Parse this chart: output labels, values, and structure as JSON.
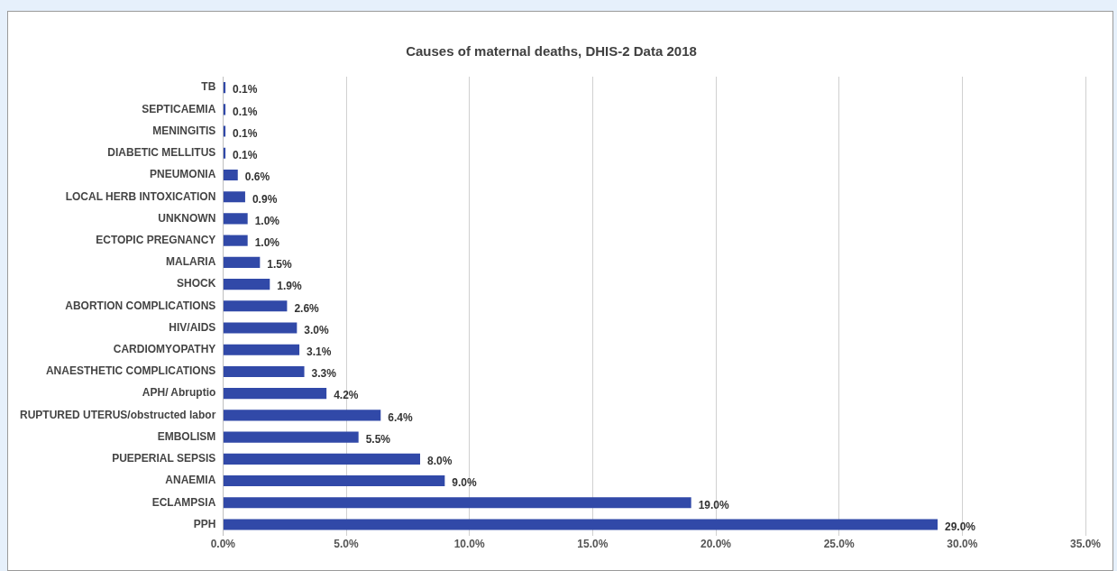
{
  "chart_data": {
    "type": "bar",
    "orientation": "horizontal",
    "title": "Causes of maternal deaths, DHIS-2 Data 2018",
    "categories": [
      "TB",
      "SEPTICAEMIA",
      "MENINGITIS",
      "DIABETIC MELLITUS",
      "PNEUMONIA",
      "LOCAL HERB INTOXICATION",
      "UNKNOWN",
      "ECTOPIC PREGNANCY",
      "MALARIA",
      "SHOCK",
      "ABORTION COMPLICATIONS",
      "HIV/AIDS",
      "CARDIOMYOPATHY",
      "ANAESTHETIC COMPLICATIONS",
      "APH/ Abruptio",
      "RUPTURED UTERUS/obstructed labor",
      "EMBOLISM",
      "PUEPERIAL SEPSIS",
      "ANAEMIA",
      "ECLAMPSIA",
      "PPH"
    ],
    "values": [
      0.1,
      0.1,
      0.1,
      0.1,
      0.6,
      0.9,
      1.0,
      1.0,
      1.5,
      1.9,
      2.6,
      3.0,
      3.1,
      3.3,
      4.2,
      6.4,
      5.5,
      8.0,
      9.0,
      19.0,
      29.0
    ],
    "value_labels": [
      "0.1%",
      "0.1%",
      "0.1%",
      "0.1%",
      "0.6%",
      "0.9%",
      "1.0%",
      "1.0%",
      "1.5%",
      "1.9%",
      "2.6%",
      "3.0%",
      "3.1%",
      "3.3%",
      "4.2%",
      "6.4%",
      "5.5%",
      "8.0%",
      "9.0%",
      "19.0%",
      "29.0%"
    ],
    "color": "#3149a8",
    "xlim": [
      0,
      35
    ],
    "xticks": [
      {
        "value": 0,
        "label": "0.0%"
      },
      {
        "value": 5,
        "label": "5.0%"
      },
      {
        "value": 10,
        "label": "10.0%"
      },
      {
        "value": 15,
        "label": "15.0%"
      },
      {
        "value": 20,
        "label": "20.0%"
      },
      {
        "value": 25,
        "label": "25.0%"
      },
      {
        "value": 30,
        "label": "30.0%"
      },
      {
        "value": 35,
        "label": "35.0%"
      }
    ],
    "grid": "x",
    "legend": false
  }
}
